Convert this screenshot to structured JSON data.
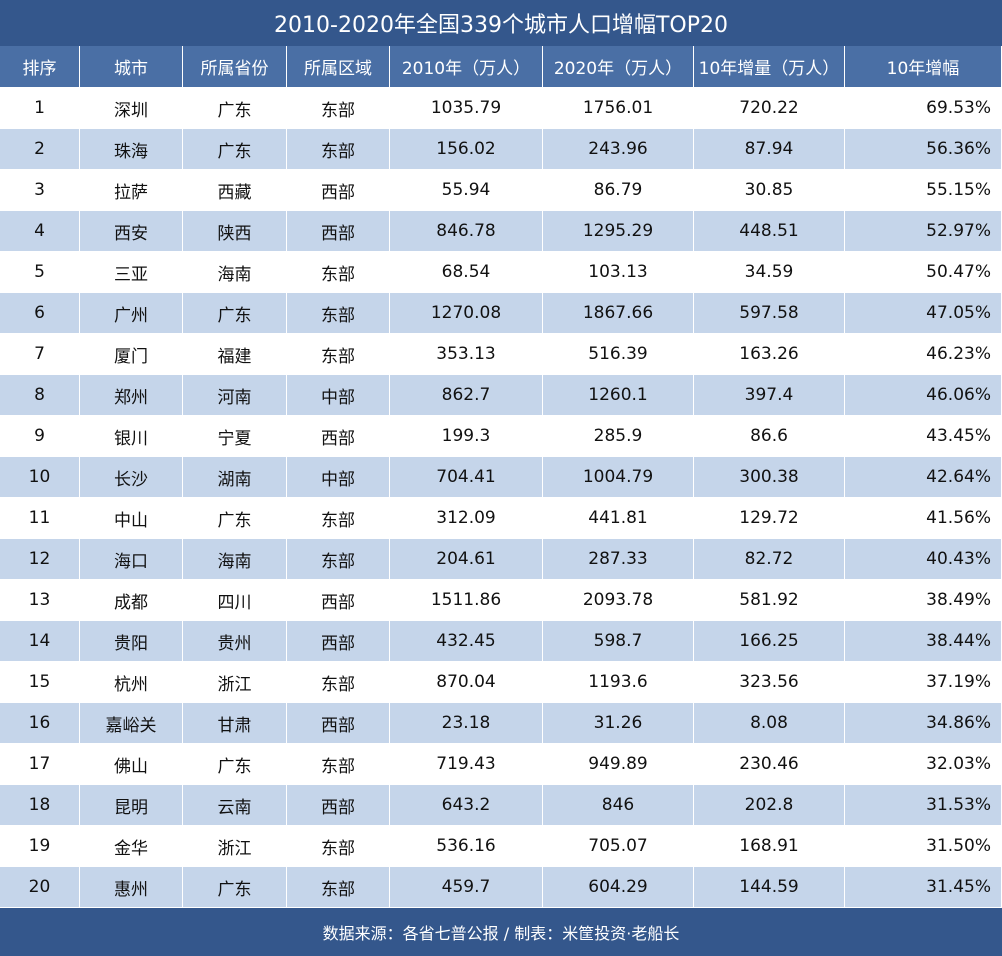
{
  "title": "2010-2020年全国339个城市人口增幅TOP20",
  "table": {
    "header": [
      "排序",
      "城市",
      "所属省份",
      "所属区域",
      "2010年（万人）",
      "2020年（万人）",
      "10年增量（万人）",
      "10年增幅"
    ],
    "rows": [
      [
        "1",
        "深圳",
        "广东",
        "东部",
        "1035.79",
        "1756.01",
        "720.22",
        {
          "value": 69.53,
          "label": "69.53%"
        }
      ],
      [
        "2",
        "珠海",
        "广东",
        "东部",
        "156.02",
        "243.96",
        "87.94",
        {
          "value": 56.36,
          "label": "56.36%"
        }
      ],
      [
        "3",
        "拉萨",
        "西藏",
        "西部",
        "55.94",
        "86.79",
        "30.85",
        {
          "value": 55.15,
          "label": "55.15%"
        }
      ],
      [
        "4",
        "西安",
        "陕西",
        "西部",
        "846.78",
        "1295.29",
        "448.51",
        {
          "value": 52.97,
          "label": "52.97%"
        }
      ],
      [
        "5",
        "三亚",
        "海南",
        "东部",
        "68.54",
        "103.13",
        "34.59",
        {
          "value": 50.47,
          "label": "50.47%"
        }
      ],
      [
        "6",
        "广州",
        "广东",
        "东部",
        "1270.08",
        "1867.66",
        "597.58",
        {
          "value": 47.05,
          "label": "47.05%"
        }
      ],
      [
        "7",
        "厦门",
        "福建",
        "东部",
        "353.13",
        "516.39",
        "163.26",
        {
          "value": 46.23,
          "label": "46.23%"
        }
      ],
      [
        "8",
        "郑州",
        "河南",
        "中部",
        "862.7",
        "1260.1",
        "397.4",
        {
          "value": 46.06,
          "label": "46.06%"
        }
      ],
      [
        "9",
        "银川",
        "宁夏",
        "西部",
        "199.3",
        "285.9",
        "86.6",
        {
          "value": 43.45,
          "label": "43.45%"
        }
      ],
      [
        "10",
        "长沙",
        "湖南",
        "中部",
        "704.41",
        "1004.79",
        "300.38",
        {
          "value": 42.64,
          "label": "42.64%"
        }
      ],
      [
        "11",
        "中山",
        "广东",
        "东部",
        "312.09",
        "441.81",
        "129.72",
        {
          "value": 41.56,
          "label": "41.56%"
        }
      ],
      [
        "12",
        "海口",
        "海南",
        "东部",
        "204.61",
        "287.33",
        "82.72",
        {
          "value": 40.43,
          "label": "40.43%"
        }
      ],
      [
        "13",
        "成都",
        "四川",
        "西部",
        "1511.86",
        "2093.78",
        "581.92",
        {
          "value": 38.49,
          "label": "38.49%"
        }
      ],
      [
        "14",
        "贵阳",
        "贵州",
        "西部",
        "432.45",
        "598.7",
        "166.25",
        {
          "value": 38.44,
          "label": "38.44%"
        }
      ],
      [
        "15",
        "杭州",
        "浙江",
        "东部",
        "870.04",
        "1193.6",
        "323.56",
        {
          "value": 37.19,
          "label": "37.19%"
        }
      ],
      [
        "16",
        "嘉峪关",
        "甘肃",
        "西部",
        "23.18",
        "31.26",
        "8.08",
        {
          "value": 34.86,
          "label": "34.86%"
        }
      ],
      [
        "17",
        "佛山",
        "广东",
        "东部",
        "719.43",
        "949.89",
        "230.46",
        {
          "value": 32.03,
          "label": "32.03%"
        }
      ],
      [
        "18",
        "昆明",
        "云南",
        "西部",
        "643.2",
        "846",
        "202.8",
        {
          "value": 31.53,
          "label": "31.53%"
        }
      ],
      [
        "19",
        "金华",
        "浙江",
        "东部",
        "536.16",
        "705.07",
        "168.91",
        {
          "value": 31.5,
          "label": "31.50%"
        }
      ],
      [
        "20",
        "惠州",
        "广东",
        "东部",
        "459.7",
        "604.29",
        "144.59",
        {
          "value": 31.45,
          "label": "31.45%"
        }
      ]
    ]
  },
  "footer": "数据来源：各省七普公报 / 制表：米筐投资·老船长"
}
